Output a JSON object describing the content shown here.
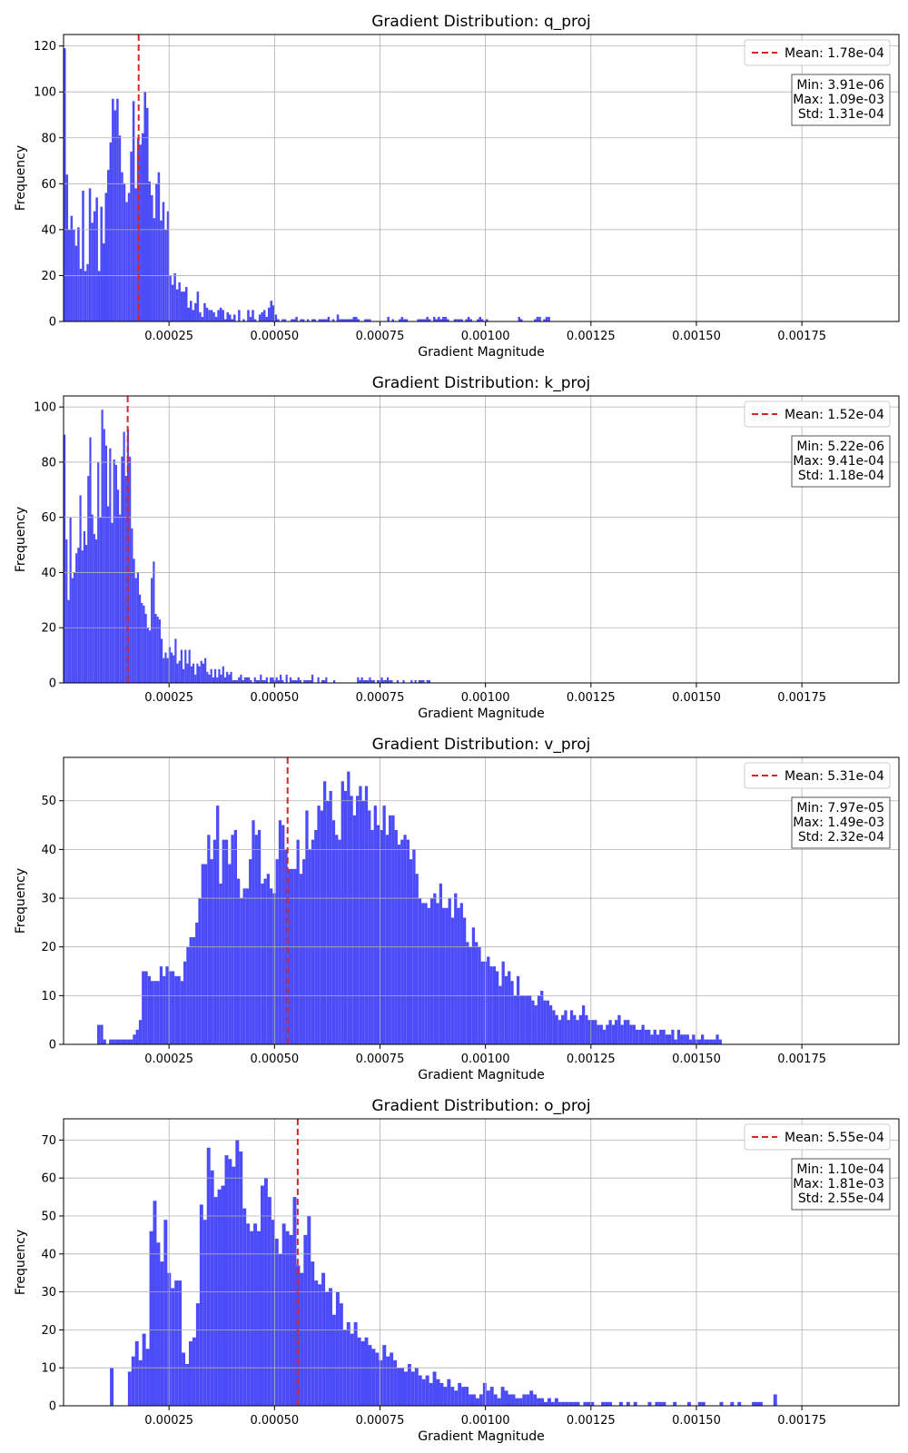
{
  "chart_data": [
    {
      "type": "bar",
      "title": "Gradient Distribution: q_proj",
      "xlabel": "Gradient Magnitude",
      "ylabel": "Frequency",
      "xlim": [
        0.0,
        0.00198
      ],
      "ylim": [
        0,
        125
      ],
      "xticks": [
        "0.00025",
        "0.00050",
        "0.00075",
        "0.00100",
        "0.00125",
        "0.00150",
        "0.00175"
      ],
      "yticks": [
        0,
        20,
        40,
        60,
        80,
        100,
        120
      ],
      "grid": true,
      "legend_position": "top-right",
      "bar_color": "#4b4bf7",
      "mean_color": "#d62728",
      "mean_value": 0.000178,
      "mean_label": "Mean: 1.78e-04",
      "stats": [
        "Min: 3.91e-06",
        "Max: 1.09e-03",
        "Std: 1.31e-04"
      ],
      "bin_start": 0.0,
      "bin_width": 5.44e-06,
      "counts": [
        119,
        64,
        40,
        46,
        40,
        33,
        41,
        23,
        57,
        22,
        25,
        58,
        43,
        48,
        54,
        22,
        50,
        34,
        56,
        66,
        78,
        97,
        92,
        97,
        81,
        65,
        60,
        52,
        56,
        74,
        96,
        58,
        80,
        77,
        82,
        100,
        93,
        61,
        55,
        45,
        60,
        65,
        44,
        52,
        40,
        48,
        20,
        16,
        21,
        14,
        17,
        13,
        13,
        15,
        6,
        9,
        5,
        8,
        13,
        4,
        2,
        8,
        6,
        5,
        5,
        4,
        2,
        5,
        6,
        5,
        1,
        4,
        3,
        1,
        3,
        0,
        5,
        0,
        1,
        0,
        5,
        2,
        5,
        1,
        0,
        3,
        4,
        5,
        2,
        6,
        9,
        7,
        3,
        1,
        0,
        1,
        1,
        0,
        0,
        1,
        1,
        2,
        0,
        1,
        1,
        0,
        1,
        0,
        1,
        1,
        0,
        1,
        1,
        1,
        1,
        2,
        0,
        1,
        0,
        3,
        1,
        1,
        1,
        1,
        1,
        1,
        2,
        2,
        1,
        0,
        0,
        1,
        1,
        1,
        0,
        0,
        0,
        0,
        0,
        0,
        0,
        2,
        0,
        1,
        0,
        0,
        1,
        2,
        1,
        1,
        0,
        0,
        0,
        0,
        1,
        1,
        1,
        1,
        2,
        1,
        0,
        2,
        1,
        2,
        1,
        2,
        2,
        1,
        0,
        0,
        1,
        1,
        1,
        1,
        0,
        1,
        2,
        1,
        0,
        0,
        1,
        2,
        1,
        0,
        1,
        0,
        0,
        0,
        0,
        0,
        0,
        0,
        0,
        0,
        0,
        0,
        0,
        0,
        2,
        1,
        0,
        0,
        0,
        0,
        0,
        1,
        2,
        2,
        0,
        1,
        2,
        2
      ]
    },
    {
      "type": "bar",
      "title": "Gradient Distribution: k_proj",
      "xlabel": "Gradient Magnitude",
      "ylabel": "Frequency",
      "xlim": [
        0.0,
        0.00198
      ],
      "ylim": [
        0,
        104
      ],
      "xticks": [
        "0.00025",
        "0.00050",
        "0.00075",
        "0.00100",
        "0.00125",
        "0.00150",
        "0.00175"
      ],
      "yticks": [
        0,
        20,
        40,
        60,
        80,
        100
      ],
      "grid": true,
      "legend_position": "top-right",
      "bar_color": "#4b4bf7",
      "mean_color": "#d62728",
      "mean_value": 0.000152,
      "mean_label": "Mean: 1.52e-04",
      "stats": [
        "Min: 5.22e-06",
        "Max: 9.41e-04",
        "Std: 1.18e-04"
      ],
      "bin_start": 0.0,
      "bin_width": 4.7e-06,
      "counts": [
        90,
        52,
        30,
        60,
        38,
        40,
        47,
        49,
        68,
        48,
        55,
        50,
        75,
        89,
        61,
        54,
        52,
        80,
        60,
        99,
        92,
        86,
        64,
        85,
        58,
        81,
        79,
        70,
        61,
        82,
        91,
        75,
        92,
        82,
        56,
        45,
        38,
        40,
        32,
        29,
        28,
        25,
        20,
        19,
        38,
        44,
        25,
        24,
        23,
        16,
        9,
        11,
        9,
        13,
        11,
        10,
        16,
        7,
        8,
        12,
        5,
        12,
        7,
        12,
        6,
        7,
        3,
        7,
        6,
        8,
        7,
        9,
        4,
        3,
        5,
        2,
        5,
        2,
        5,
        3,
        6,
        2,
        4,
        3,
        4,
        1,
        1,
        1,
        2,
        3,
        1,
        2,
        2,
        2,
        1,
        0,
        2,
        1,
        1,
        3,
        1,
        1,
        2,
        0,
        2,
        2,
        1,
        2,
        1,
        3,
        1,
        0,
        3,
        0,
        2,
        1,
        1,
        1,
        2,
        1,
        0,
        1,
        1,
        1,
        1,
        3,
        0,
        0,
        2,
        0,
        1,
        1,
        2,
        0,
        0,
        0,
        1,
        0,
        0,
        0,
        0,
        0,
        0,
        0,
        0,
        0,
        0,
        0,
        2,
        1,
        2,
        1,
        1,
        1,
        2,
        1,
        1,
        0,
        1,
        1,
        2,
        1,
        1,
        2,
        1,
        1,
        0,
        0,
        1,
        0,
        0,
        1,
        0,
        0,
        0,
        1,
        0,
        1,
        0,
        1,
        1,
        1,
        0,
        1,
        1
      ]
    },
    {
      "type": "bar",
      "title": "Gradient Distribution: v_proj",
      "xlabel": "Gradient Magnitude",
      "ylabel": "Frequency",
      "xlim": [
        0.0,
        0.00198
      ],
      "ylim": [
        0,
        58.9
      ],
      "xticks": [
        "0.00025",
        "0.00050",
        "0.00075",
        "0.00100",
        "0.00125",
        "0.00150",
        "0.00175"
      ],
      "yticks": [
        0,
        10,
        20,
        30,
        40,
        50
      ],
      "grid": true,
      "legend_position": "top-right",
      "bar_color": "#4b4bf7",
      "mean_color": "#d62728",
      "mean_value": 0.000531,
      "mean_label": "Mean: 5.31e-04",
      "stats": [
        "Min: 7.97e-05",
        "Max: 1.49e-03",
        "Std: 2.32e-04"
      ],
      "bin_start": 7.97e-05,
      "bin_width": 7.05e-06,
      "counts": [
        4,
        4,
        1,
        0,
        1,
        1,
        1,
        1,
        1,
        1,
        1,
        1,
        2,
        3,
        5,
        15,
        15,
        14,
        13,
        13,
        13,
        16,
        14,
        16,
        15,
        15,
        14,
        14,
        13,
        17,
        20,
        22,
        22,
        25,
        30,
        37,
        37,
        43,
        38,
        42,
        49,
        33,
        42,
        42,
        37,
        43,
        44,
        34,
        30,
        32,
        32,
        38,
        46,
        43,
        44,
        33,
        34,
        35,
        32,
        31,
        38,
        46,
        45,
        40,
        36,
        36,
        36,
        42,
        35,
        38,
        48,
        40,
        42,
        44,
        49,
        48,
        54,
        50,
        52,
        46,
        43,
        42,
        54,
        52,
        56,
        51,
        47,
        51,
        53,
        50,
        53,
        48,
        44,
        49,
        45,
        44,
        49,
        43,
        47,
        47,
        44,
        41,
        42,
        43,
        42,
        38,
        40,
        35,
        30,
        29,
        29,
        28,
        30,
        31,
        29,
        33,
        28,
        28,
        30,
        26,
        31,
        28,
        29,
        26,
        21,
        20,
        24,
        21,
        20,
        17,
        17,
        18,
        16,
        16,
        15,
        12,
        17,
        14,
        15,
        13,
        10,
        14,
        10,
        10,
        10,
        10,
        9,
        8,
        10,
        11,
        9,
        9,
        8,
        7,
        6,
        5,
        6,
        7,
        5,
        7,
        6,
        5,
        6,
        8,
        6,
        5,
        5,
        5,
        4,
        4,
        3,
        4,
        5,
        4,
        5,
        6,
        4,
        5,
        5,
        4,
        4,
        3,
        3,
        4,
        3,
        3,
        2,
        3,
        2,
        3,
        3,
        2,
        2,
        3,
        1,
        3,
        2,
        2,
        2,
        1,
        2,
        1,
        1,
        2,
        1,
        1,
        1,
        1,
        2,
        1
      ]
    },
    {
      "type": "bar",
      "title": "Gradient Distribution: o_proj",
      "xlabel": "Gradient Magnitude",
      "ylabel": "Frequency",
      "xlim": [
        0.0,
        0.00198
      ],
      "ylim": [
        0,
        75.6
      ],
      "xticks": [
        "0.00025",
        "0.00050",
        "0.00075",
        "0.00100",
        "0.00125",
        "0.00150",
        "0.00175"
      ],
      "yticks": [
        0,
        10,
        20,
        30,
        40,
        50,
        60,
        70
      ],
      "grid": true,
      "legend_position": "top-right",
      "bar_color": "#4b4bf7",
      "mean_color": "#d62728",
      "mean_value": 0.000555,
      "mean_label": "Mean: 5.55e-04",
      "stats": [
        "Min: 1.10e-04",
        "Max: 1.81e-03",
        "Std: 2.55e-04"
      ],
      "bin_start": 0.00011,
      "bin_width": 8.5e-06,
      "counts": [
        10,
        0,
        0,
        0,
        0,
        9,
        13,
        17,
        12,
        19,
        15,
        46,
        54,
        43,
        38,
        49,
        35,
        31,
        33,
        33,
        14,
        11,
        17,
        18,
        27,
        53,
        49,
        68,
        62,
        55,
        57,
        58,
        66,
        65,
        63,
        70,
        67,
        52,
        48,
        46,
        48,
        46,
        58,
        60,
        55,
        49,
        44,
        40,
        48,
        46,
        45,
        55,
        37,
        35,
        45,
        50,
        38,
        33,
        32,
        35,
        30,
        31,
        24,
        30,
        27,
        20,
        22,
        19,
        22,
        18,
        17,
        18,
        16,
        15,
        14,
        12,
        16,
        13,
        14,
        12,
        10,
        10,
        9,
        11,
        9,
        10,
        8,
        7,
        8,
        6,
        9,
        7,
        6,
        5,
        7,
        5,
        4,
        6,
        5,
        5,
        3,
        3,
        2,
        3,
        6,
        4,
        5,
        3,
        2,
        5,
        4,
        3,
        3,
        2,
        2,
        3,
        3,
        4,
        3,
        2,
        2,
        1,
        2,
        1,
        2,
        1,
        1,
        1,
        1,
        1,
        1,
        0,
        1,
        1,
        1,
        0,
        0,
        1,
        1,
        1,
        0,
        0,
        1,
        0,
        1,
        0,
        1,
        0,
        0,
        0,
        1,
        0,
        1,
        1,
        1,
        0,
        0,
        1,
        0,
        0,
        0,
        1,
        0,
        0,
        1,
        1,
        0,
        0,
        0,
        0,
        1,
        0,
        0,
        1,
        0,
        1,
        0,
        0,
        0,
        1,
        1,
        1,
        0,
        0,
        0,
        3
      ]
    }
  ]
}
